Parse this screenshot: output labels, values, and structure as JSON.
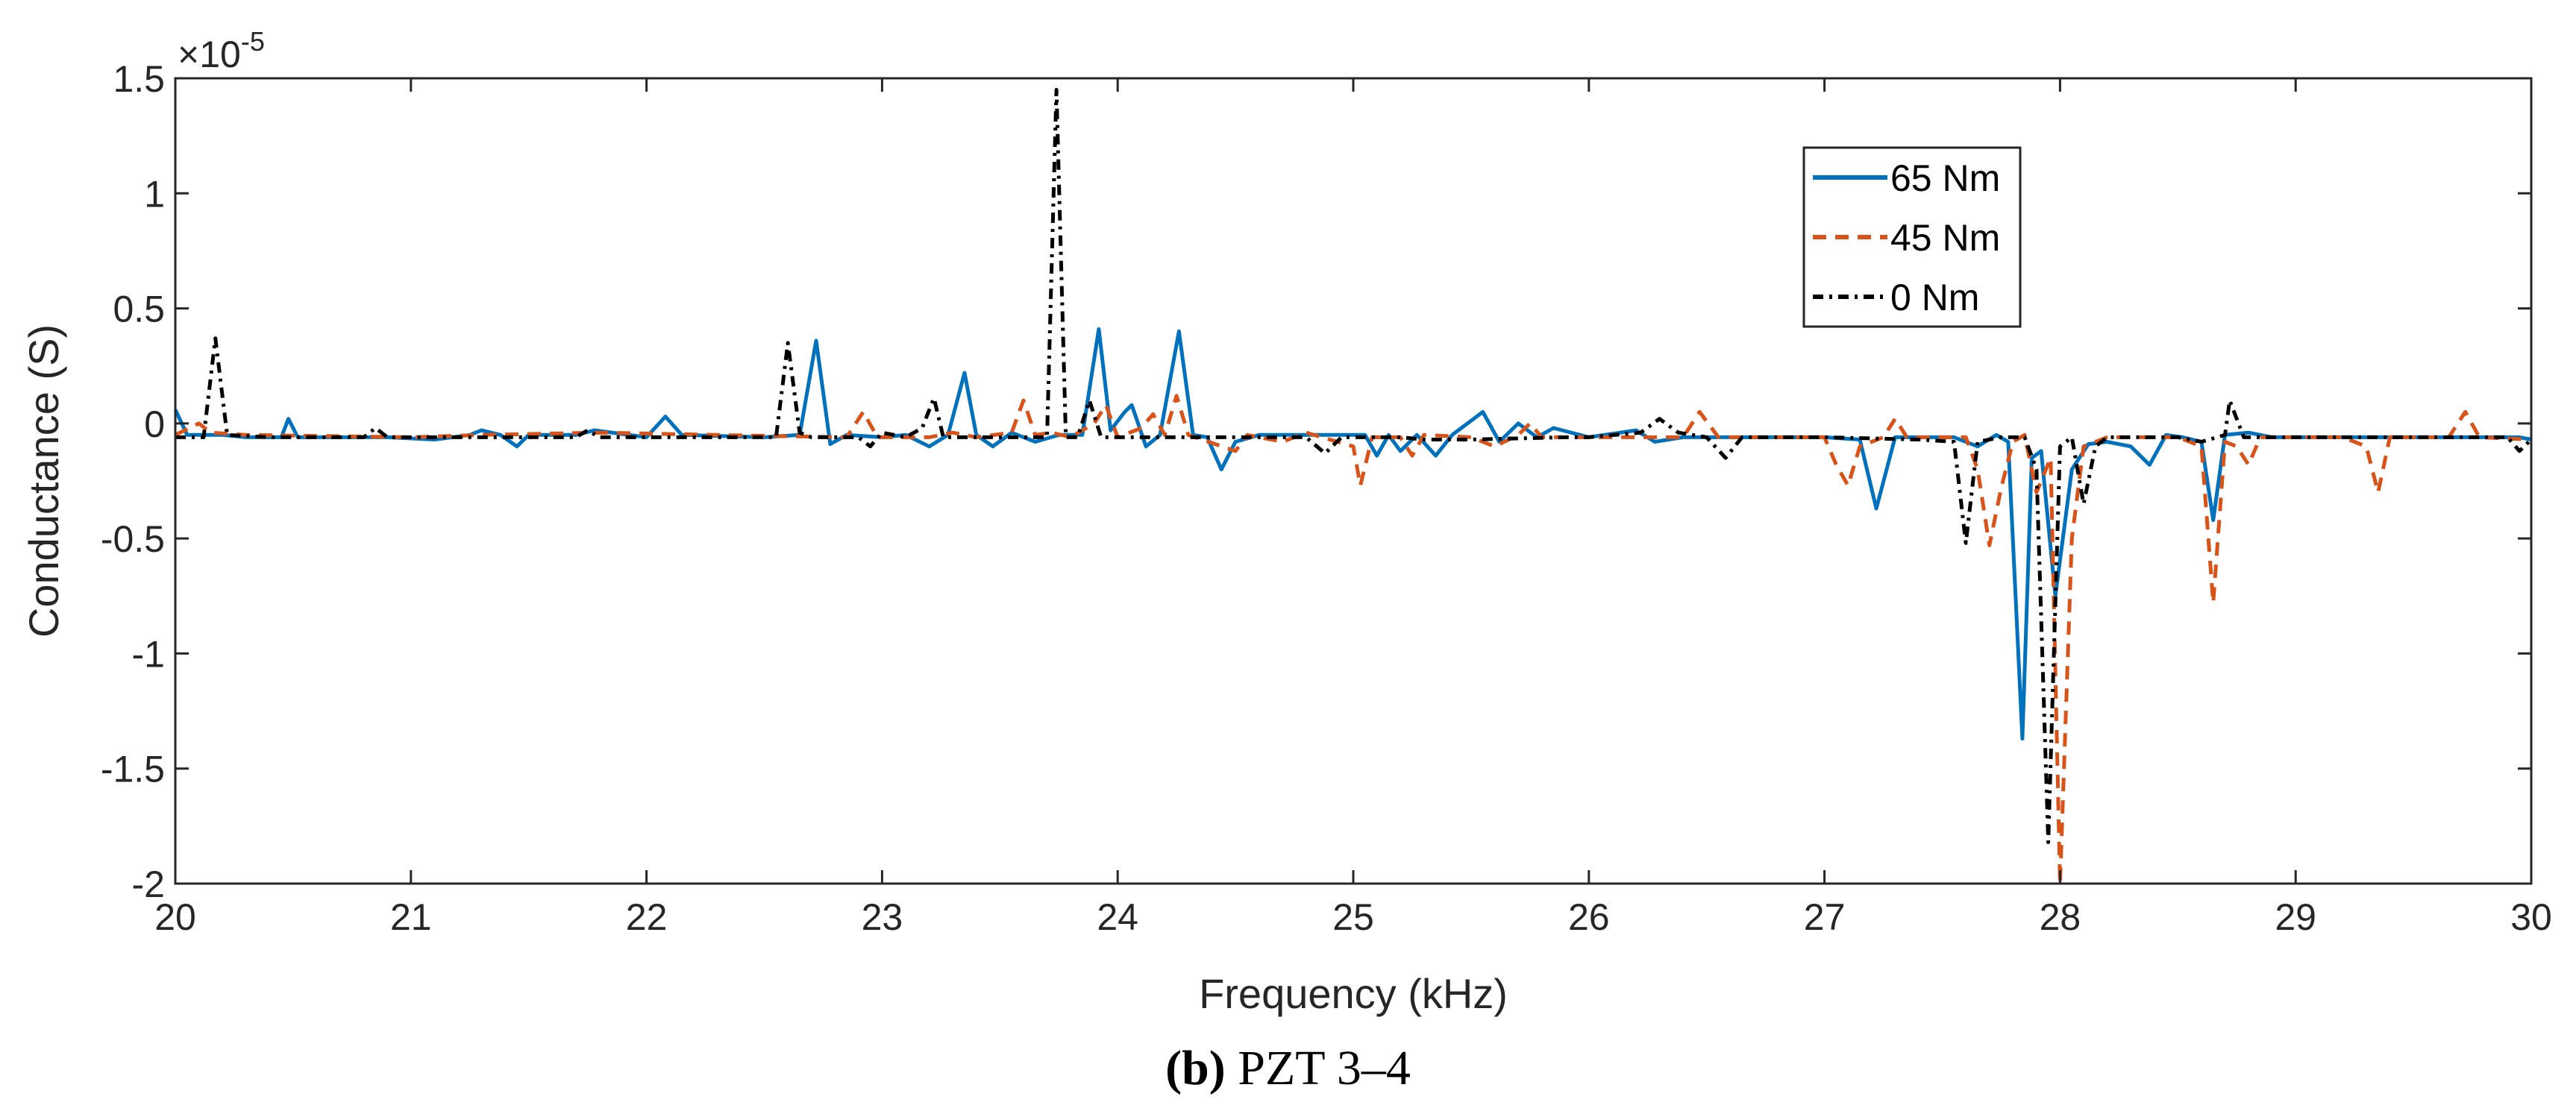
{
  "chart_data": {
    "type": "line",
    "title": "",
    "xlabel": "Frequency (kHz)",
    "ylabel": "Conductance (S)",
    "y_exponent_label": "×10",
    "y_exponent_power": "-5",
    "xlim": [
      20,
      30
    ],
    "ylim": [
      -2,
      1.5
    ],
    "x_ticks": [
      20,
      21,
      22,
      23,
      24,
      25,
      26,
      27,
      28,
      29,
      30
    ],
    "y_ticks": [
      -2,
      -1.5,
      -1,
      -0.5,
      0,
      0.5,
      1,
      1.5
    ],
    "x_tick_labels": [
      "20",
      "21",
      "22",
      "23",
      "24",
      "25",
      "26",
      "27",
      "28",
      "29",
      "30"
    ],
    "y_tick_labels": [
      "-2",
      "-1.5",
      "-1",
      "-0.5",
      "0",
      "0.5",
      "1",
      "1.5"
    ],
    "legend_position": "top-right",
    "series": [
      {
        "name": "65 Nm",
        "color": "#0072BD",
        "style": "solid",
        "points": [
          [
            20.0,
            0.06
          ],
          [
            20.05,
            -0.05
          ],
          [
            20.2,
            -0.05
          ],
          [
            20.3,
            -0.06
          ],
          [
            20.45,
            -0.06
          ],
          [
            20.48,
            0.02
          ],
          [
            20.52,
            -0.06
          ],
          [
            20.9,
            -0.06
          ],
          [
            21.1,
            -0.07
          ],
          [
            21.25,
            -0.05
          ],
          [
            21.3,
            -0.03
          ],
          [
            21.38,
            -0.05
          ],
          [
            21.45,
            -0.1
          ],
          [
            21.5,
            -0.05
          ],
          [
            21.7,
            -0.05
          ],
          [
            21.78,
            -0.03
          ],
          [
            22.0,
            -0.06
          ],
          [
            22.08,
            0.03
          ],
          [
            22.15,
            -0.05
          ],
          [
            22.5,
            -0.06
          ],
          [
            22.65,
            -0.05
          ],
          [
            22.72,
            0.36
          ],
          [
            22.78,
            -0.09
          ],
          [
            22.85,
            -0.05
          ],
          [
            23.0,
            -0.06
          ],
          [
            23.1,
            -0.05
          ],
          [
            23.2,
            -0.1
          ],
          [
            23.28,
            -0.05
          ],
          [
            23.35,
            0.22
          ],
          [
            23.4,
            -0.05
          ],
          [
            23.47,
            -0.1
          ],
          [
            23.55,
            -0.04
          ],
          [
            23.65,
            -0.08
          ],
          [
            23.75,
            -0.05
          ],
          [
            23.85,
            -0.05
          ],
          [
            23.92,
            0.41
          ],
          [
            23.97,
            -0.03
          ],
          [
            24.03,
            0.05
          ],
          [
            24.06,
            0.08
          ],
          [
            24.12,
            -0.1
          ],
          [
            24.18,
            -0.05
          ],
          [
            24.26,
            0.4
          ],
          [
            24.32,
            -0.05
          ],
          [
            24.38,
            -0.06
          ],
          [
            24.44,
            -0.2
          ],
          [
            24.5,
            -0.08
          ],
          [
            24.6,
            -0.05
          ],
          [
            24.8,
            -0.05
          ],
          [
            25.05,
            -0.05
          ],
          [
            25.1,
            -0.14
          ],
          [
            25.15,
            -0.05
          ],
          [
            25.2,
            -0.12
          ],
          [
            25.27,
            -0.05
          ],
          [
            25.35,
            -0.14
          ],
          [
            25.42,
            -0.05
          ],
          [
            25.55,
            0.05
          ],
          [
            25.62,
            -0.08
          ],
          [
            25.7,
            0.0
          ],
          [
            25.78,
            -0.06
          ],
          [
            25.85,
            -0.02
          ],
          [
            26.0,
            -0.06
          ],
          [
            26.2,
            -0.03
          ],
          [
            26.28,
            -0.08
          ],
          [
            26.4,
            -0.06
          ],
          [
            27.0,
            -0.06
          ],
          [
            27.15,
            -0.07
          ],
          [
            27.22,
            -0.37
          ],
          [
            27.3,
            -0.06
          ],
          [
            27.55,
            -0.06
          ],
          [
            27.65,
            -0.1
          ],
          [
            27.73,
            -0.05
          ],
          [
            27.78,
            -0.08
          ],
          [
            27.84,
            -1.37
          ],
          [
            27.88,
            -0.15
          ],
          [
            27.92,
            -0.12
          ],
          [
            27.98,
            -0.75
          ],
          [
            28.05,
            -0.2
          ],
          [
            28.12,
            -0.09
          ],
          [
            28.2,
            -0.08
          ],
          [
            28.3,
            -0.1
          ],
          [
            28.38,
            -0.18
          ],
          [
            28.45,
            -0.05
          ],
          [
            28.52,
            -0.06
          ],
          [
            28.6,
            -0.08
          ],
          [
            28.65,
            -0.42
          ],
          [
            28.7,
            -0.05
          ],
          [
            28.8,
            -0.04
          ],
          [
            28.9,
            -0.06
          ],
          [
            29.5,
            -0.06
          ],
          [
            29.95,
            -0.06
          ],
          [
            30.0,
            -0.07
          ]
        ]
      },
      {
        "name": "45 Nm",
        "color": "#D95319",
        "style": "dashed",
        "points": [
          [
            20.0,
            -0.05
          ],
          [
            20.1,
            0.0
          ],
          [
            20.15,
            -0.04
          ],
          [
            20.3,
            -0.05
          ],
          [
            21.0,
            -0.06
          ],
          [
            21.3,
            -0.05
          ],
          [
            21.8,
            -0.04
          ],
          [
            22.3,
            -0.05
          ],
          [
            22.85,
            -0.06
          ],
          [
            22.92,
            0.05
          ],
          [
            22.98,
            -0.06
          ],
          [
            23.2,
            -0.06
          ],
          [
            23.3,
            -0.04
          ],
          [
            23.4,
            -0.06
          ],
          [
            23.55,
            -0.04
          ],
          [
            23.6,
            0.1
          ],
          [
            23.65,
            -0.05
          ],
          [
            23.72,
            -0.04
          ],
          [
            23.8,
            -0.06
          ],
          [
            23.9,
            0.0
          ],
          [
            23.95,
            0.08
          ],
          [
            24.0,
            -0.06
          ],
          [
            24.1,
            -0.02
          ],
          [
            24.15,
            0.04
          ],
          [
            24.2,
            -0.05
          ],
          [
            24.25,
            0.12
          ],
          [
            24.3,
            -0.05
          ],
          [
            24.5,
            -0.12
          ],
          [
            24.55,
            -0.05
          ],
          [
            24.7,
            -0.08
          ],
          [
            24.8,
            -0.04
          ],
          [
            25.0,
            -0.1
          ],
          [
            25.03,
            -0.27
          ],
          [
            25.08,
            -0.06
          ],
          [
            25.2,
            -0.06
          ],
          [
            25.25,
            -0.14
          ],
          [
            25.3,
            -0.05
          ],
          [
            25.5,
            -0.06
          ],
          [
            25.6,
            -0.1
          ],
          [
            25.7,
            -0.05
          ],
          [
            25.75,
            0.0
          ],
          [
            25.8,
            -0.06
          ],
          [
            26.4,
            -0.06
          ],
          [
            26.47,
            0.05
          ],
          [
            26.55,
            -0.06
          ],
          [
            27.0,
            -0.06
          ],
          [
            27.05,
            -0.18
          ],
          [
            27.1,
            -0.27
          ],
          [
            27.15,
            -0.1
          ],
          [
            27.25,
            -0.06
          ],
          [
            27.3,
            0.02
          ],
          [
            27.35,
            -0.06
          ],
          [
            27.6,
            -0.06
          ],
          [
            27.65,
            -0.2
          ],
          [
            27.7,
            -0.53
          ],
          [
            27.75,
            -0.28
          ],
          [
            27.8,
            -0.08
          ],
          [
            27.85,
            -0.05
          ],
          [
            27.9,
            -0.3
          ],
          [
            27.96,
            -0.15
          ],
          [
            28.0,
            -2.0
          ],
          [
            28.05,
            -0.5
          ],
          [
            28.1,
            -0.1
          ],
          [
            28.2,
            -0.06
          ],
          [
            28.5,
            -0.06
          ],
          [
            28.6,
            -0.1
          ],
          [
            28.65,
            -0.78
          ],
          [
            28.7,
            -0.08
          ],
          [
            28.75,
            -0.1
          ],
          [
            28.8,
            -0.18
          ],
          [
            28.85,
            -0.06
          ],
          [
            29.2,
            -0.06
          ],
          [
            29.3,
            -0.1
          ],
          [
            29.35,
            -0.3
          ],
          [
            29.4,
            -0.06
          ],
          [
            29.65,
            -0.06
          ],
          [
            29.72,
            0.05
          ],
          [
            29.78,
            -0.06
          ],
          [
            30.0,
            -0.07
          ]
        ]
      },
      {
        "name": "0 Nm",
        "color": "#000000",
        "style": "dashdot",
        "points": [
          [
            20.0,
            -0.06
          ],
          [
            20.12,
            -0.06
          ],
          [
            20.17,
            0.37
          ],
          [
            20.22,
            -0.05
          ],
          [
            20.4,
            -0.06
          ],
          [
            20.8,
            -0.06
          ],
          [
            20.85,
            -0.02
          ],
          [
            20.9,
            -0.06
          ],
          [
            21.7,
            -0.06
          ],
          [
            21.75,
            -0.03
          ],
          [
            21.8,
            -0.06
          ],
          [
            22.55,
            -0.06
          ],
          [
            22.6,
            0.35
          ],
          [
            22.65,
            -0.04
          ],
          [
            22.7,
            -0.06
          ],
          [
            22.9,
            -0.06
          ],
          [
            22.95,
            -0.1
          ],
          [
            23.0,
            -0.04
          ],
          [
            23.1,
            -0.06
          ],
          [
            23.17,
            -0.02
          ],
          [
            23.22,
            0.11
          ],
          [
            23.26,
            -0.06
          ],
          [
            23.5,
            -0.06
          ],
          [
            23.7,
            -0.06
          ],
          [
            23.74,
            1.45
          ],
          [
            23.78,
            -0.06
          ],
          [
            23.83,
            -0.06
          ],
          [
            23.88,
            0.1
          ],
          [
            23.93,
            -0.06
          ],
          [
            24.2,
            -0.06
          ],
          [
            24.6,
            -0.06
          ],
          [
            24.8,
            -0.06
          ],
          [
            24.88,
            -0.13
          ],
          [
            24.95,
            -0.06
          ],
          [
            25.2,
            -0.06
          ],
          [
            25.3,
            -0.07
          ],
          [
            25.5,
            -0.07
          ],
          [
            25.9,
            -0.06
          ],
          [
            26.0,
            -0.06
          ],
          [
            26.22,
            -0.04
          ],
          [
            26.3,
            0.02
          ],
          [
            26.38,
            -0.04
          ],
          [
            26.5,
            -0.06
          ],
          [
            26.58,
            -0.15
          ],
          [
            26.65,
            -0.06
          ],
          [
            27.0,
            -0.06
          ],
          [
            27.4,
            -0.07
          ],
          [
            27.55,
            -0.08
          ],
          [
            27.6,
            -0.52
          ],
          [
            27.65,
            -0.08
          ],
          [
            27.75,
            -0.06
          ],
          [
            27.85,
            -0.06
          ],
          [
            27.9,
            -0.2
          ],
          [
            27.95,
            -1.82
          ],
          [
            28.0,
            -0.1
          ],
          [
            28.05,
            -0.06
          ],
          [
            28.1,
            -0.35
          ],
          [
            28.15,
            -0.1
          ],
          [
            28.2,
            -0.06
          ],
          [
            28.5,
            -0.06
          ],
          [
            28.6,
            -0.08
          ],
          [
            28.7,
            -0.05
          ],
          [
            28.72,
            0.1
          ],
          [
            28.78,
            -0.06
          ],
          [
            29.0,
            -0.06
          ],
          [
            29.5,
            -0.06
          ],
          [
            29.9,
            -0.06
          ],
          [
            29.95,
            -0.12
          ],
          [
            30.0,
            -0.07
          ]
        ]
      }
    ]
  },
  "caption": {
    "bold_part": "(b)",
    "text_part": " PZT 3–4"
  }
}
